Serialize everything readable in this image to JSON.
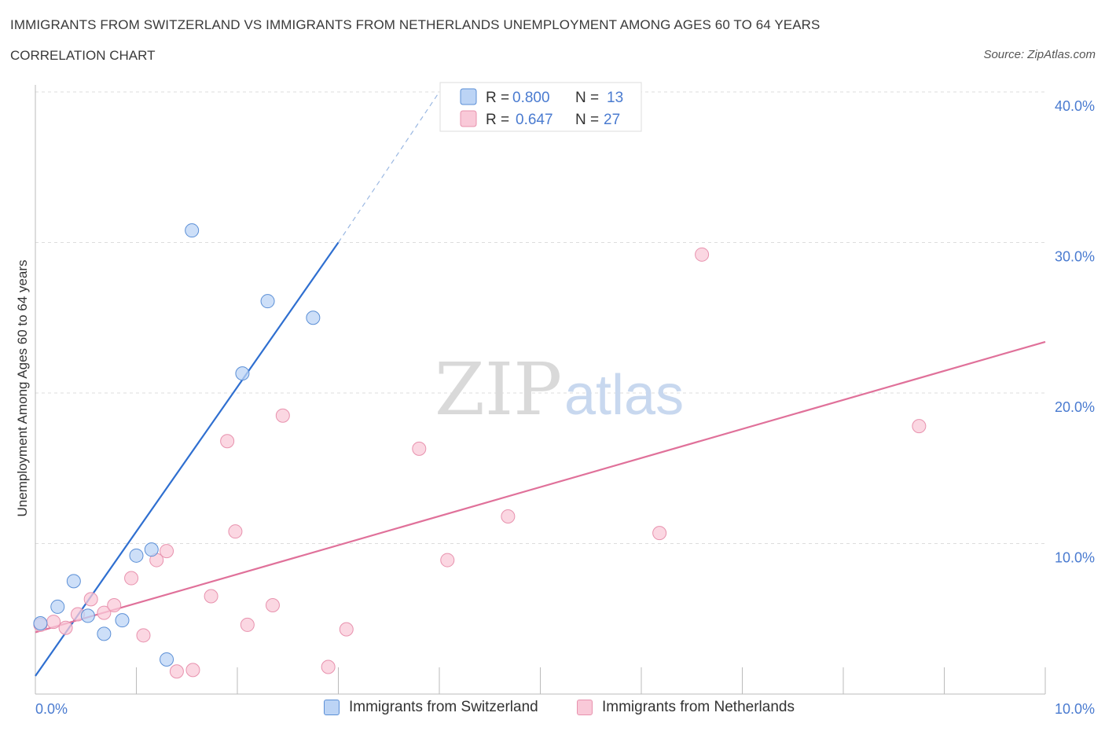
{
  "title": "IMMIGRANTS FROM SWITZERLAND VS IMMIGRANTS FROM NETHERLANDS UNEMPLOYMENT AMONG AGES 60 TO 64 YEARS",
  "subtitle": "CORRELATION CHART",
  "source": "Source: ZipAtlas.com",
  "watermark": {
    "zip": "ZIP",
    "atlas": "atlas"
  },
  "legend_top": [
    {
      "r_label": "R =",
      "r_value": "0.800",
      "n_label": "N =",
      "n_value": "13"
    },
    {
      "r_label": "R =",
      "r_value": "0.647",
      "n_label": "N =",
      "n_value": "27"
    }
  ],
  "colors": {
    "switzerland_fill": "#bcd4f5",
    "switzerland_stroke": "#5b8fd6",
    "switzerland_line": "#2f6fd0",
    "netherlands_fill": "#f9c9d8",
    "netherlands_stroke": "#e892ae",
    "netherlands_line": "#e0719a",
    "tick_text": "#4a7bd0",
    "grid": "#dddddd"
  },
  "chart_data": {
    "type": "scatter",
    "title": "IMMIGRANTS FROM SWITZERLAND VS IMMIGRANTS FROM NETHERLANDS UNEMPLOYMENT AMONG AGES 60 TO 64 YEARS",
    "xlabel": "",
    "ylabel": "Unemployment Among Ages 60 to 64 years",
    "xlim": [
      0,
      10
    ],
    "ylim": [
      0,
      40
    ],
    "x_tick_labels": [
      "0.0%",
      "10.0%"
    ],
    "y_ticks": [
      10,
      20,
      30,
      40
    ],
    "y_tick_labels": [
      "10.0%",
      "20.0%",
      "30.0%",
      "40.0%"
    ],
    "grid": true,
    "legend_position": "top-center",
    "series": [
      {
        "name": "Immigrants from Switzerland",
        "R": 0.8,
        "N": 13,
        "points": [
          {
            "x": 0.05,
            "y": 4.7
          },
          {
            "x": 0.22,
            "y": 5.8
          },
          {
            "x": 0.38,
            "y": 7.5
          },
          {
            "x": 0.52,
            "y": 5.2
          },
          {
            "x": 0.68,
            "y": 4.0
          },
          {
            "x": 0.86,
            "y": 4.9
          },
          {
            "x": 1.0,
            "y": 9.2
          },
          {
            "x": 1.15,
            "y": 9.6
          },
          {
            "x": 1.3,
            "y": 2.3
          },
          {
            "x": 1.55,
            "y": 30.8
          },
          {
            "x": 2.05,
            "y": 21.3
          },
          {
            "x": 2.3,
            "y": 26.1
          },
          {
            "x": 2.75,
            "y": 25.0
          }
        ],
        "trend": {
          "x0": 0.0,
          "y0": 1.2,
          "x1": 3.0,
          "y1": 30.0,
          "dash_x1": 4.0,
          "dash_y1": 40.0
        }
      },
      {
        "name": "Immigrants from Netherlands",
        "R": 0.647,
        "N": 27,
        "points": [
          {
            "x": 0.05,
            "y": 4.6
          },
          {
            "x": 0.18,
            "y": 4.8
          },
          {
            "x": 0.3,
            "y": 4.4
          },
          {
            "x": 0.42,
            "y": 5.3
          },
          {
            "x": 0.55,
            "y": 6.3
          },
          {
            "x": 0.68,
            "y": 5.4
          },
          {
            "x": 0.78,
            "y": 5.9
          },
          {
            "x": 0.95,
            "y": 7.7
          },
          {
            "x": 1.07,
            "y": 3.9
          },
          {
            "x": 1.2,
            "y": 8.9
          },
          {
            "x": 1.3,
            "y": 9.5
          },
          {
            "x": 1.4,
            "y": 1.5
          },
          {
            "x": 1.56,
            "y": 1.6
          },
          {
            "x": 1.74,
            "y": 6.5
          },
          {
            "x": 1.9,
            "y": 16.8
          },
          {
            "x": 1.98,
            "y": 10.8
          },
          {
            "x": 2.1,
            "y": 4.6
          },
          {
            "x": 2.35,
            "y": 5.9
          },
          {
            "x": 2.45,
            "y": 18.5
          },
          {
            "x": 2.9,
            "y": 1.8
          },
          {
            "x": 3.08,
            "y": 4.3
          },
          {
            "x": 3.8,
            "y": 16.3
          },
          {
            "x": 4.08,
            "y": 8.9
          },
          {
            "x": 4.68,
            "y": 11.8
          },
          {
            "x": 6.18,
            "y": 10.7
          },
          {
            "x": 6.6,
            "y": 29.2
          },
          {
            "x": 8.75,
            "y": 17.8
          }
        ],
        "trend": {
          "x0": 0.0,
          "y0": 4.1,
          "x1": 10.0,
          "y1": 23.4
        }
      }
    ]
  },
  "legend_bottom": [
    {
      "label": "Immigrants from Switzerland"
    },
    {
      "label": "Immigrants from Netherlands"
    }
  ]
}
